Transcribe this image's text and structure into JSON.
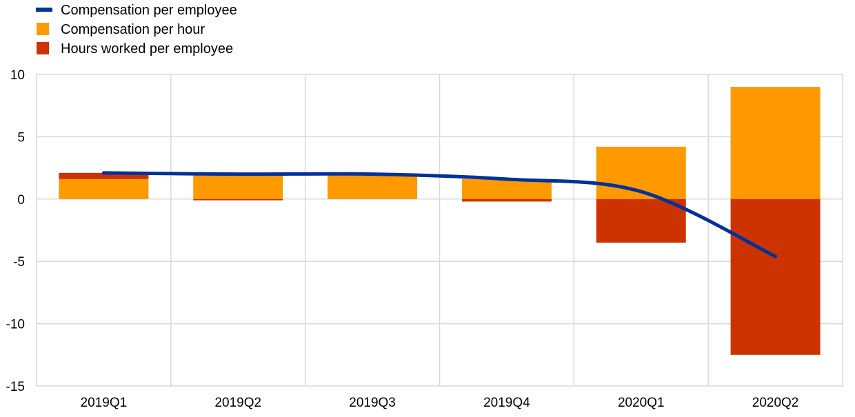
{
  "colors": {
    "compensation_per_employee": "#003299",
    "compensation_per_hour": "#FF9900",
    "hours_worked_per_employee": "#CC3300",
    "grid": "#D9D9D9",
    "axis_frame": "#D9D9D9"
  },
  "legend": {
    "placement": "top-left",
    "items": [
      {
        "label": "Compensation per employee",
        "marker": "line",
        "color_key": "compensation_per_employee"
      },
      {
        "label": "Compensation per hour",
        "marker": "square",
        "color_key": "compensation_per_hour"
      },
      {
        "label": "Hours worked per employee",
        "marker": "square",
        "color_key": "hours_worked_per_employee"
      }
    ]
  },
  "chart_data": {
    "type": "bar",
    "stacked": true,
    "title": "",
    "xlabel": "",
    "ylabel": "",
    "categories": [
      "2019Q1",
      "2019Q2",
      "2019Q3",
      "2019Q4",
      "2020Q1",
      "2020Q2"
    ],
    "ylim": [
      -15,
      10
    ],
    "yticks": [
      -15,
      -10,
      -5,
      0,
      5,
      10
    ],
    "grid": true,
    "series": [
      {
        "name": "Compensation per hour",
        "kind": "bar",
        "color_key": "compensation_per_hour",
        "values": [
          1.6,
          1.9,
          1.9,
          1.6,
          4.2,
          9.0
        ]
      },
      {
        "name": "Hours worked per employee",
        "kind": "bar",
        "color_key": "hours_worked_per_employee",
        "values": [
          0.5,
          -0.1,
          0.0,
          -0.2,
          -3.5,
          -12.5
        ]
      },
      {
        "name": "Compensation per employee",
        "kind": "line",
        "color_key": "compensation_per_employee",
        "values": [
          2.1,
          2.0,
          2.0,
          1.6,
          0.6,
          -4.6
        ]
      }
    ]
  }
}
